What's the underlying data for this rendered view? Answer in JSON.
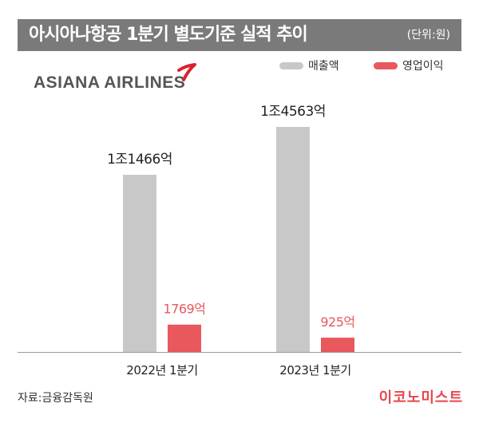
{
  "header": {
    "title": "아시아나항공 1분기 별도기준 실적 추이",
    "unit": "(단위:원)"
  },
  "brand": {
    "logo_text": "ASIANA AIRLINES",
    "mark_color": "#d9232d"
  },
  "legend": [
    {
      "name": "매출액",
      "color": "#c8c8c8"
    },
    {
      "name": "영업이익",
      "color": "#e8585c"
    }
  ],
  "chart_data": {
    "type": "bar",
    "categories": [
      "2022년 1분기",
      "2023년 1분기"
    ],
    "series": [
      {
        "name": "매출액",
        "values": [
          11466,
          14563
        ],
        "labels": [
          "1조1466억",
          "1조4563억"
        ],
        "color": "#c8c8c8"
      },
      {
        "name": "영업이익",
        "values": [
          1769,
          925
        ],
        "labels": [
          "1769억",
          "925억"
        ],
        "color": "#e8585c"
      }
    ],
    "unit": "억원",
    "ylim": [
      0,
      16000
    ],
    "grid": false,
    "legend_position": "top-right"
  },
  "footer": {
    "source": "자료:금융감독원",
    "publisher": "이코노미스트"
  }
}
